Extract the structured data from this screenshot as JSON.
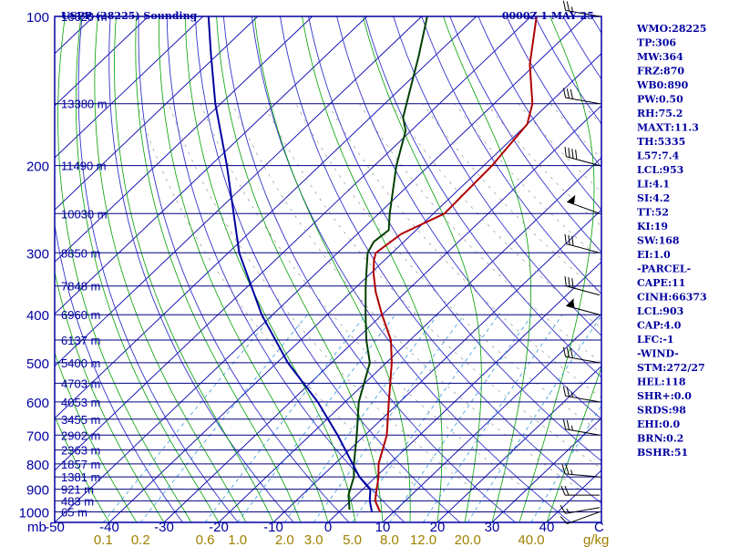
{
  "chart_data": {
    "type": "line",
    "subtype": "skew-t log-p sounding",
    "title_left": "USPP (28225) Sounding",
    "title_right": "0000Z  1 MAY 25",
    "pressure_axis_unit": "mb",
    "pressure_ticks": [
      100,
      200,
      300,
      400,
      500,
      600,
      700,
      800,
      900,
      1000
    ],
    "pressure_range": [
      1050,
      100
    ],
    "temperature_axis_unit": "C",
    "temperature_ticks": [
      -50,
      -40,
      -30,
      -20,
      -10,
      0,
      10,
      20,
      30,
      40
    ],
    "temperature_range_at_base": [
      -50,
      50
    ],
    "mixing_ratio_unit": "g/kg",
    "mixing_ratio_ticks": [
      "0.1",
      "0.2",
      "0.6",
      "1.0",
      "2.0",
      "3.0",
      "5.0",
      "8.0",
      "12.0",
      "20.0",
      "40.0"
    ],
    "height_levels": [
      {
        "p": 100,
        "label": "16620 m"
      },
      {
        "p": 150,
        "label": "13380 m"
      },
      {
        "p": 200,
        "label": "11490 m"
      },
      {
        "p": 250,
        "label": "10030 m"
      },
      {
        "p": 300,
        "label": "8850 m"
      },
      {
        "p": 350,
        "label": "7848 m"
      },
      {
        "p": 400,
        "label": "6960 m"
      },
      {
        "p": 450,
        "label": "6137 m"
      },
      {
        "p": 500,
        "label": "5400 m"
      },
      {
        "p": 550,
        "label": "4703 m"
      },
      {
        "p": 600,
        "label": "4053 m"
      },
      {
        "p": 650,
        "label": "3455 m"
      },
      {
        "p": 700,
        "label": "2902 m"
      },
      {
        "p": 750,
        "label": "2363 m"
      },
      {
        "p": 800,
        "label": "1857 m"
      },
      {
        "p": 850,
        "label": "1381 m"
      },
      {
        "p": 900,
        "label": "921 m"
      },
      {
        "p": 950,
        "label": "483 m"
      },
      {
        "p": 1000,
        "label": "65 m"
      }
    ],
    "series": [
      {
        "color": "#b00000",
        "points": [
          {
            "p": 1000,
            "t": 7.5
          },
          {
            "p": 950,
            "t": 4.5
          },
          {
            "p": 925,
            "t": 3.5
          },
          {
            "p": 850,
            "t": 0.5
          },
          {
            "p": 800,
            "t": -2
          },
          {
            "p": 700,
            "t": -6
          },
          {
            "p": 600,
            "t": -12
          },
          {
            "p": 500,
            "t": -19
          },
          {
            "p": 450,
            "t": -23.5
          },
          {
            "p": 400,
            "t": -30
          },
          {
            "p": 360,
            "t": -35.5
          },
          {
            "p": 330,
            "t": -39.5
          },
          {
            "p": 310,
            "t": -42
          },
          {
            "p": 300,
            "t": -43
          },
          {
            "p": 275,
            "t": -42
          },
          {
            "p": 250,
            "t": -38
          },
          {
            "p": 200,
            "t": -38.5
          },
          {
            "p": 165,
            "t": -40
          },
          {
            "p": 150,
            "t": -43
          },
          {
            "p": 125,
            "t": -51
          },
          {
            "p": 100,
            "t": -59
          }
        ]
      },
      {
        "color": "#004000",
        "points": [
          {
            "p": 990,
            "t": 1.5
          },
          {
            "p": 925,
            "t": -1.5
          },
          {
            "p": 850,
            "t": -4
          },
          {
            "p": 800,
            "t": -6.5
          },
          {
            "p": 700,
            "t": -11.5
          },
          {
            "p": 600,
            "t": -17.5
          },
          {
            "p": 500,
            "t": -23
          },
          {
            "p": 450,
            "t": -28
          },
          {
            "p": 400,
            "t": -33
          },
          {
            "p": 350,
            "t": -38.5
          },
          {
            "p": 320,
            "t": -42
          },
          {
            "p": 300,
            "t": -44.5
          },
          {
            "p": 285,
            "t": -45.5
          },
          {
            "p": 270,
            "t": -45
          },
          {
            "p": 250,
            "t": -48
          },
          {
            "p": 200,
            "t": -56
          },
          {
            "p": 170,
            "t": -61
          },
          {
            "p": 160,
            "t": -64
          },
          {
            "p": 120,
            "t": -73
          },
          {
            "p": 100,
            "t": -79
          }
        ]
      },
      {
        "color": "#0000a0",
        "points": [
          {
            "p": 1000,
            "t": 6
          },
          {
            "p": 950,
            "t": 3.5
          },
          {
            "p": 903,
            "t": 1.5
          },
          {
            "p": 850,
            "t": -3
          },
          {
            "p": 700,
            "t": -15
          },
          {
            "p": 600,
            "t": -25
          },
          {
            "p": 500,
            "t": -38
          },
          {
            "p": 400,
            "t": -52
          },
          {
            "p": 300,
            "t": -68
          },
          {
            "p": 200,
            "t": -87
          },
          {
            "p": 150,
            "t": -101
          },
          {
            "p": 120,
            "t": -111
          },
          {
            "p": 100,
            "t": -119
          }
        ]
      }
    ],
    "winds": [
      {
        "p": 1000,
        "dir": 250,
        "spd": 10
      },
      {
        "p": 980,
        "dir": 260,
        "spd": 15
      },
      {
        "p": 925,
        "dir": 270,
        "spd": 20
      },
      {
        "p": 850,
        "dir": 275,
        "spd": 25
      },
      {
        "p": 700,
        "dir": 280,
        "spd": 25
      },
      {
        "p": 600,
        "dir": 280,
        "spd": 25
      },
      {
        "p": 500,
        "dir": 280,
        "spd": 30
      },
      {
        "p": 400,
        "dir": 285,
        "spd": 55
      },
      {
        "p": 365,
        "dir": 285,
        "spd": 30
      },
      {
        "p": 300,
        "dir": 285,
        "spd": 30
      },
      {
        "p": 250,
        "dir": 290,
        "spd": 50
      },
      {
        "p": 200,
        "dir": 285,
        "spd": 40
      },
      {
        "p": 150,
        "dir": 280,
        "spd": 30
      },
      {
        "p": 100,
        "dir": 280,
        "spd": 25
      }
    ],
    "colors": {
      "isobar": "#000080",
      "isotherm": "#0000b0",
      "dry_adiabat": "#3333cc",
      "moist_adiabat": "#00a000",
      "mixing_ratio": "#00a000",
      "text": "#0000a0",
      "mixing_ratio_text": "#a08000"
    }
  },
  "indices": [
    "WMO:28225",
    "TP:306",
    "MW:364",
    "FRZ:870",
    "WB0:890",
    "PW:0.50",
    "RH:75.2",
    "MAXT:11.3",
    "TH:5335",
    "L57:7.4",
    "LCL:953",
    "LI:4.1",
    "SI:4.2",
    "TT:52",
    "KI:19",
    "SW:168",
    "EI:1.0",
    "-PARCEL-",
    "CAPE:11",
    "CINH:66373",
    "LCL:903",
    "CAP:4.0",
    "LFC:-1",
    "-WIND-",
    "STM:272/27",
    "HEL:118",
    "SHR+:0.0",
    "SRDS:98",
    "EHI:0.0",
    "BRN:0.2",
    "BSHR:51"
  ]
}
